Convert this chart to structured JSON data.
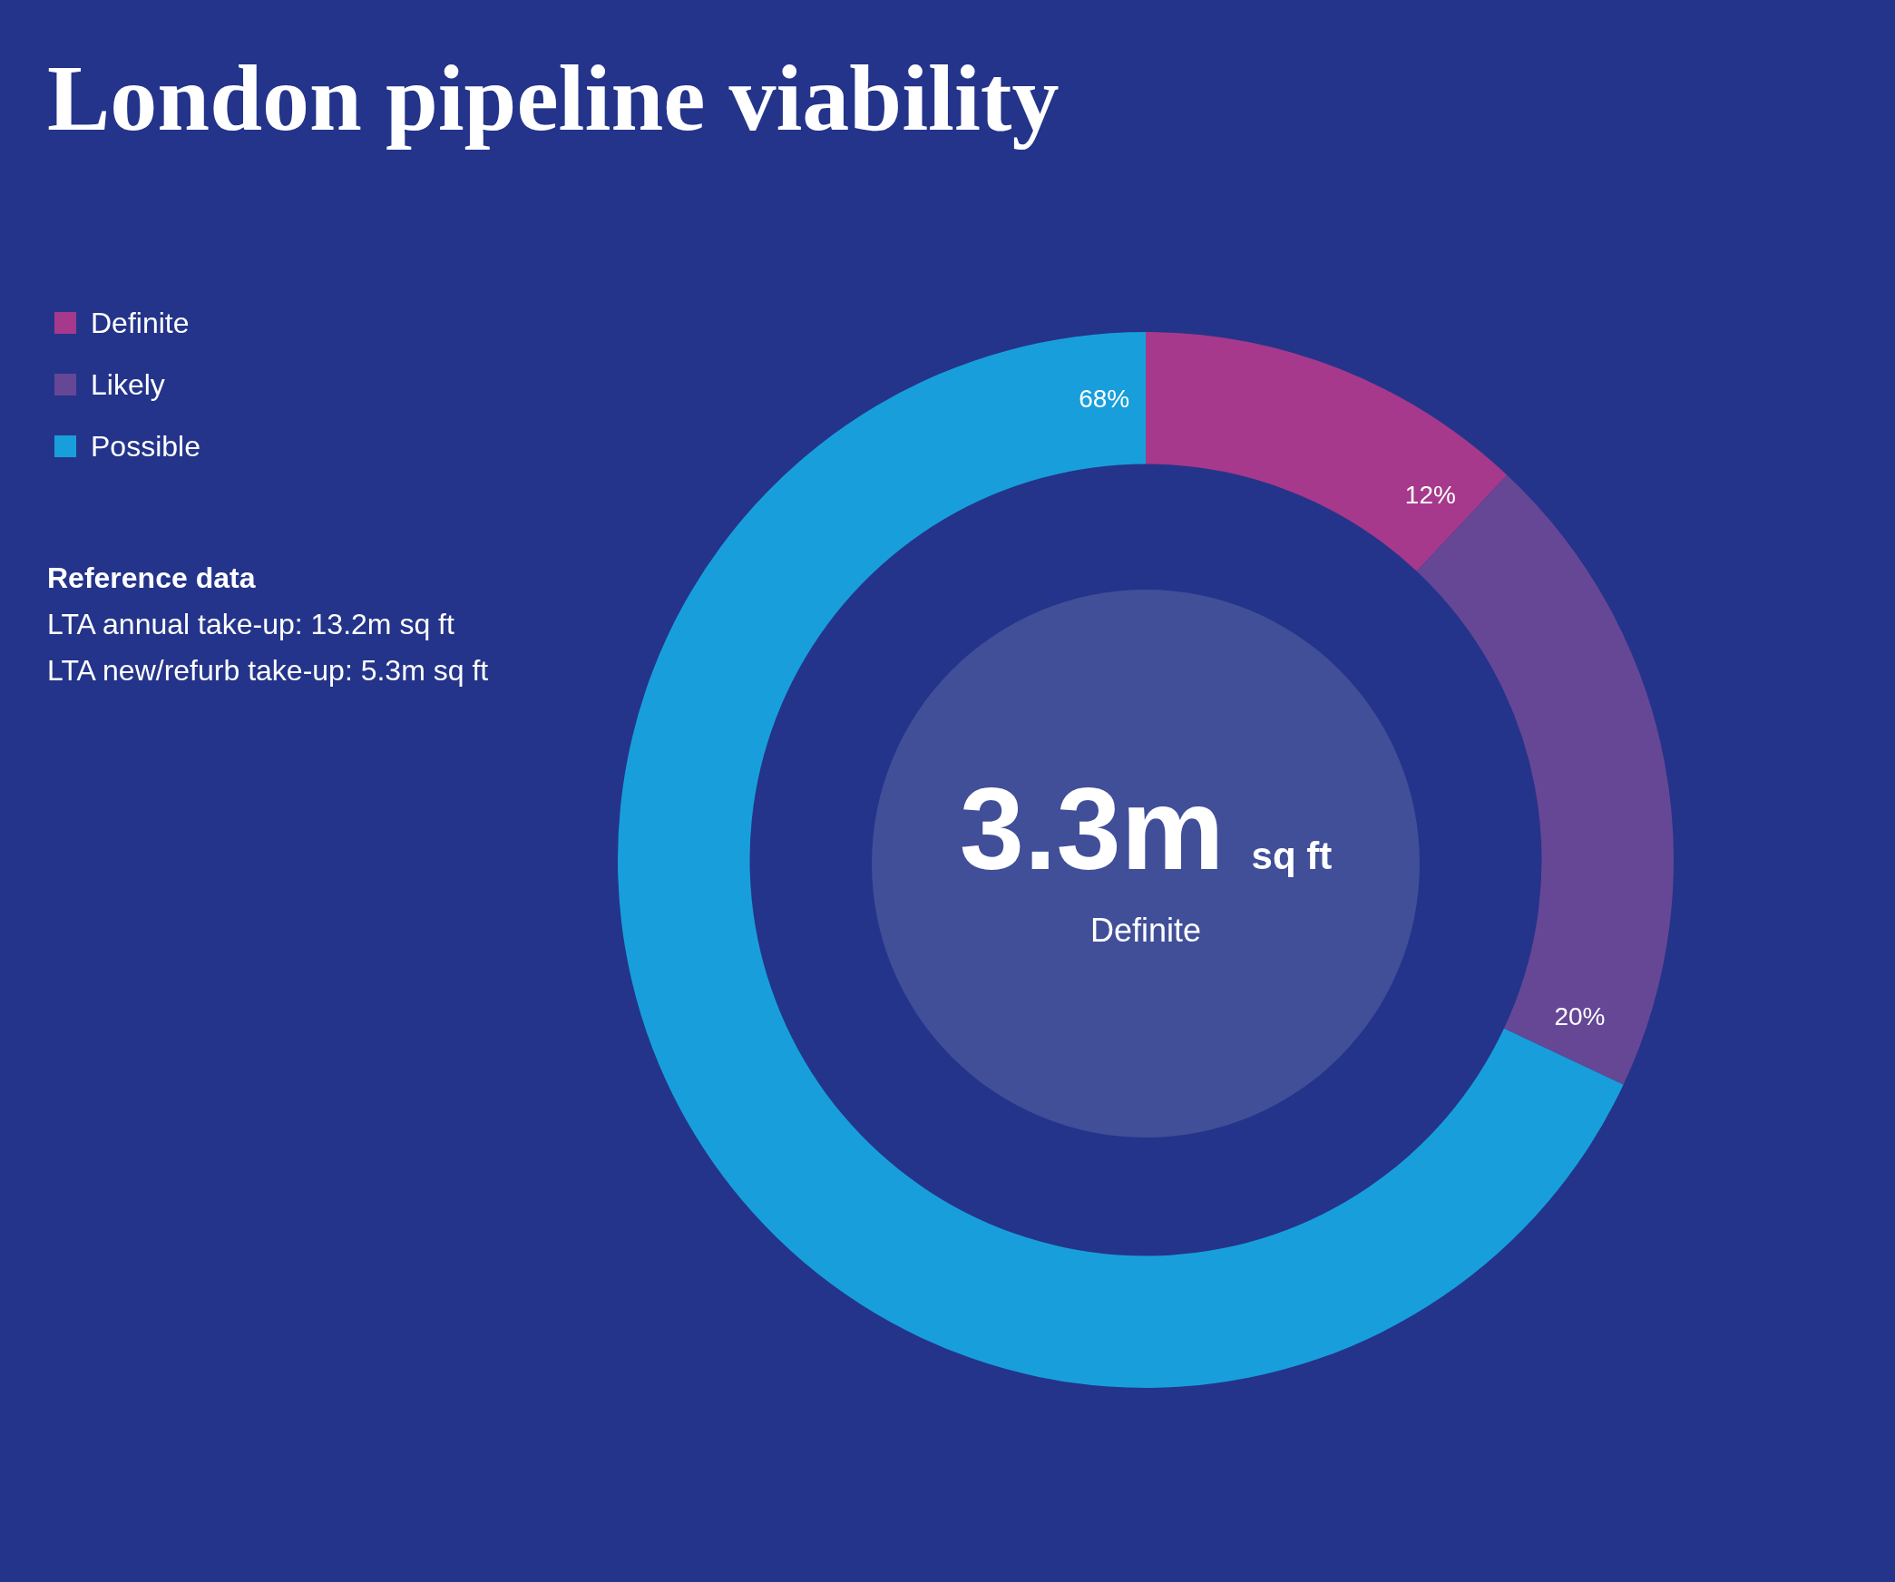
{
  "chart_data": {
    "type": "donut",
    "title": "London pipeline viability",
    "categories": [
      "Definite",
      "Likely",
      "Possible"
    ],
    "values": [
      12,
      20,
      68
    ],
    "colors": [
      "#a6398c",
      "#654796",
      "#189fdb"
    ],
    "value_labels": [
      "12%",
      "20%",
      "68%"
    ],
    "legend": "top left",
    "annotations": [
      "3.3m",
      "sq ft",
      "Definite",
      "Reference data",
      "LTA annual take-up: 13.2m sq ft",
      "LTA new/refurb take-up: 5.3m sq ft"
    ]
  }
}
